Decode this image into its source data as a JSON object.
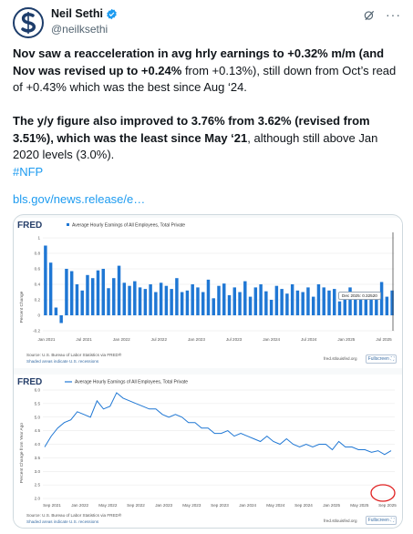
{
  "author": {
    "display_name": "Neil Sethi",
    "handle": "@neilksethi",
    "avatar_icon": "dollar-s-logo-icon",
    "verified_icon": "verified-badge-icon"
  },
  "tweet": {
    "p1_bold": "Nov saw a reacceleration in avg hrly earnings to +0.32% m/m (and Nov was revised up to +0.24%",
    "p1_rest": " from +0.13%), still down from Oct’s read of +0.43% which was the best since Aug ‘24.",
    "p2_bold": "The y/y figure also improved to 3.76% from 3.62% (revised from 3.51%), which was the least since May ‘21",
    "p2_rest": ", although still above Jan 2020 levels (3.0%).",
    "hashtag": "#NFP",
    "link": "bls.gov/news.release/e…"
  },
  "charts": {
    "top": {
      "logo": "FRED",
      "legend": "Average Hourly Earnings of All Employees, Total Private",
      "source": "Source: U.S. Bureau of Labor Statistics via FRED®",
      "shaded": "Shaded areas indicate U.S. recessions",
      "site": "fred.stlouisfed.org",
      "fullscreen": "Fullscreen",
      "tooltip": "Dec 2025: 0.32520",
      "ylabel": "Percent Change",
      "yticks": [
        "1",
        "0.8",
        "0.6",
        "0.4",
        "0.2",
        "0",
        "-0.2"
      ],
      "xticks": [
        "Jan 2021",
        "Jul 2021",
        "Jan 2022",
        "Jul 2022",
        "Jan 2023",
        "Jul 2023",
        "Jan 2024",
        "Jul 2024",
        "Jan 2025",
        "Jul 2025"
      ]
    },
    "bottom": {
      "logo": "FRED",
      "legend": "Average Hourly Earnings of All Employees, Total Private",
      "source": "Source: U.S. Bureau of Labor Statistics via FRED®",
      "shaded": "Shaded areas indicate U.S. recessions",
      "site": "fred.stlouisfed.org",
      "fullscreen": "Fullscreen",
      "ylabel": "Percent Change from Year Ago",
      "yticks": [
        "6.0",
        "5.5",
        "5.0",
        "4.5",
        "4.0",
        "3.5",
        "3.0",
        "2.5",
        "2.0"
      ],
      "xticks": [
        "Sep 2021",
        "Jan 2022",
        "May 2022",
        "Sep 2022",
        "Jan 2023",
        "May 2023",
        "Sep 2023",
        "Jan 2024",
        "May 2024",
        "Sep 2024",
        "Jan 2025",
        "May 2025",
        "Sep 2025"
      ]
    }
  },
  "chart_data": [
    {
      "type": "bar",
      "ylim": [
        -0.2,
        1.0
      ],
      "grid": true,
      "series": [
        {
          "name": "Average Hourly Earnings of All Employees, Total Private",
          "values": [
            0.9,
            0.68,
            0.1,
            -0.1,
            0.6,
            0.57,
            0.4,
            0.32,
            0.52,
            0.48,
            0.58,
            0.6,
            0.35,
            0.48,
            0.64,
            0.42,
            0.38,
            0.44,
            0.36,
            0.34,
            0.4,
            0.3,
            0.42,
            0.38,
            0.34,
            0.48,
            0.3,
            0.32,
            0.4,
            0.36,
            0.3,
            0.46,
            0.22,
            0.38,
            0.41,
            0.26,
            0.36,
            0.3,
            0.44,
            0.24,
            0.36,
            0.4,
            0.31,
            0.2,
            0.38,
            0.34,
            0.28,
            0.4,
            0.32,
            0.3,
            0.36,
            0.24,
            0.4,
            0.36,
            0.32,
            0.34,
            0.18,
            0.3,
            0.36,
            0.22,
            0.3,
            0.28,
            0.24,
            0.3,
            0.43,
            0.24,
            0.32
          ]
        }
      ]
    },
    {
      "type": "line",
      "ylim": [
        2.0,
        6.0
      ],
      "grid": true,
      "series": [
        {
          "name": "Average Hourly Earnings of All Employees, Total Private",
          "values": [
            3.9,
            4.3,
            4.6,
            4.8,
            4.9,
            5.2,
            5.1,
            5.0,
            5.6,
            5.3,
            5.4,
            5.9,
            5.7,
            5.6,
            5.5,
            5.4,
            5.3,
            5.3,
            5.1,
            5.0,
            5.1,
            5.0,
            4.8,
            4.8,
            4.6,
            4.6,
            4.4,
            4.4,
            4.5,
            4.3,
            4.4,
            4.3,
            4.2,
            4.1,
            4.3,
            4.1,
            4.0,
            4.2,
            4.0,
            3.9,
            4.0,
            3.9,
            4.0,
            4.0,
            3.8,
            4.1,
            3.9,
            3.9,
            3.8,
            3.8,
            3.7,
            3.76,
            3.62,
            3.76
          ]
        }
      ]
    }
  ]
}
